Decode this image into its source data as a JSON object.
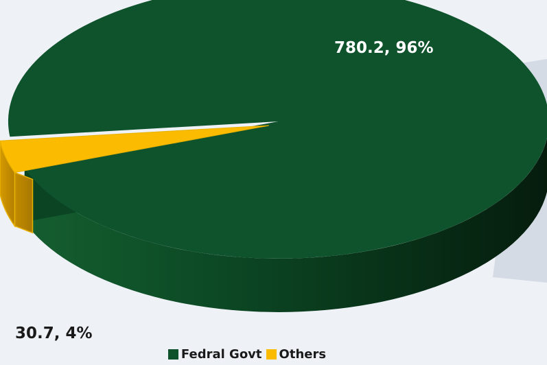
{
  "chart_data": {
    "type": "pie",
    "title": "",
    "categories": [
      "Fedral Govt",
      "Others"
    ],
    "values": [
      780.2,
      30.7
    ],
    "percentages": [
      96,
      4
    ],
    "data_labels": [
      "780.2, 96%",
      "30.7, 4%"
    ],
    "colors": [
      "#0e522c",
      "#fbbb00"
    ],
    "style": "3d-exploded",
    "legend_position": "bottom"
  }
}
